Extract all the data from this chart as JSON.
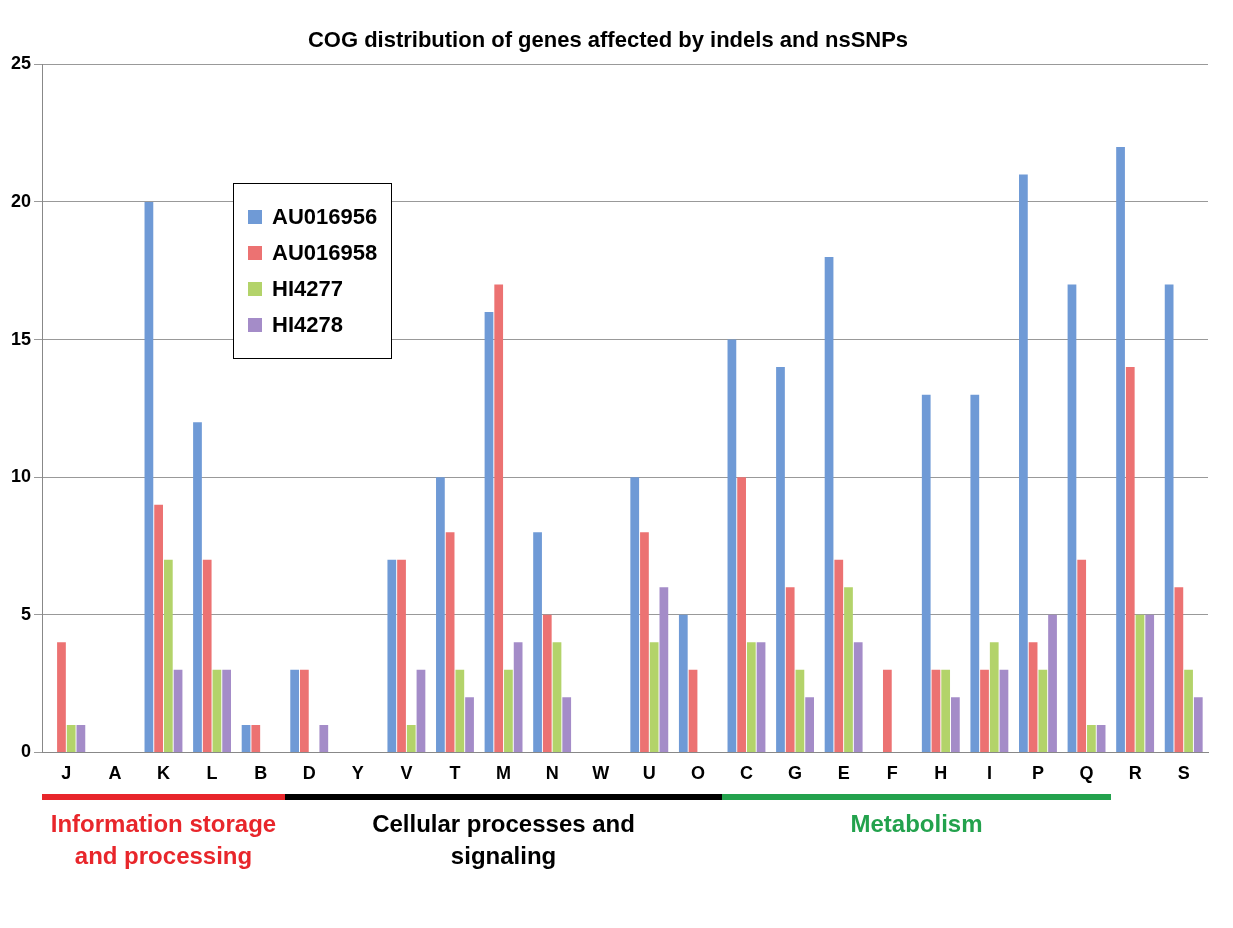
{
  "chart_data": {
    "type": "bar",
    "title": "COG distribution of genes affected by indels and nsSNPs",
    "categories": [
      "J",
      "A",
      "K",
      "L",
      "B",
      "D",
      "Y",
      "V",
      "T",
      "M",
      "N",
      "W",
      "U",
      "O",
      "C",
      "G",
      "E",
      "F",
      "H",
      "I",
      "P",
      "Q",
      "R",
      "S"
    ],
    "series": [
      {
        "name": "AU016956",
        "color": "#6f9ad6",
        "values": [
          0,
          0,
          20,
          12,
          1,
          3,
          0,
          7,
          10,
          16,
          8,
          0,
          10,
          5,
          15,
          14,
          18,
          0,
          13,
          13,
          21,
          17,
          22,
          17
        ]
      },
      {
        "name": "AU016958",
        "color": "#ec7272",
        "values": [
          4,
          0,
          9,
          7,
          1,
          3,
          0,
          7,
          8,
          17,
          5,
          0,
          8,
          3,
          10,
          6,
          7,
          3,
          3,
          3,
          4,
          7,
          14,
          6
        ]
      },
      {
        "name": "HI4277",
        "color": "#b3d36a",
        "values": [
          1,
          0,
          7,
          3,
          0,
          0,
          0,
          1,
          3,
          3,
          4,
          0,
          4,
          0,
          4,
          3,
          6,
          0,
          3,
          4,
          3,
          1,
          5,
          3
        ]
      },
      {
        "name": "HI4278",
        "color": "#a48cc8",
        "values": [
          1,
          0,
          3,
          3,
          0,
          1,
          0,
          3,
          2,
          4,
          2,
          0,
          6,
          0,
          4,
          2,
          4,
          0,
          2,
          3,
          5,
          1,
          5,
          2
        ]
      }
    ],
    "ylim": [
      0,
      25
    ],
    "yticks": [
      0,
      5,
      10,
      15,
      20,
      25
    ],
    "grid": "y",
    "legend": "top left",
    "annotations": [
      "Information storage and processing",
      "Cellular processes and signaling",
      "Metabolism"
    ]
  }
}
